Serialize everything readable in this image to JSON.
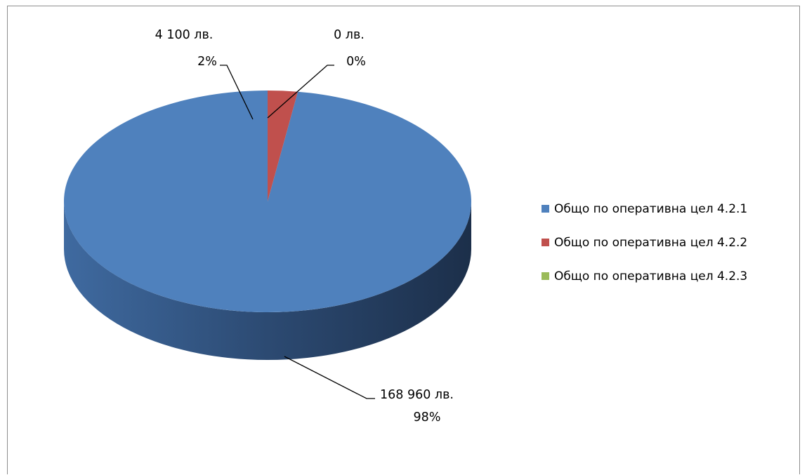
{
  "chart_data": {
    "type": "pie",
    "style": "3d",
    "title": "",
    "categories": [
      "Общо по оперативна цел 4.2.1",
      "Общо по оперативна цел 4.2.2",
      "Общо по оперативна цел 4.2.3"
    ],
    "values": [
      168960,
      4100,
      0
    ],
    "value_labels": [
      "168 960 лв.",
      "4 100 лв.",
      "0 лв."
    ],
    "percent_labels": [
      "98%",
      "2%",
      "0%"
    ],
    "colors": [
      "#4f81bd",
      "#c0504d",
      "#9bbb59"
    ],
    "legend": "right"
  }
}
